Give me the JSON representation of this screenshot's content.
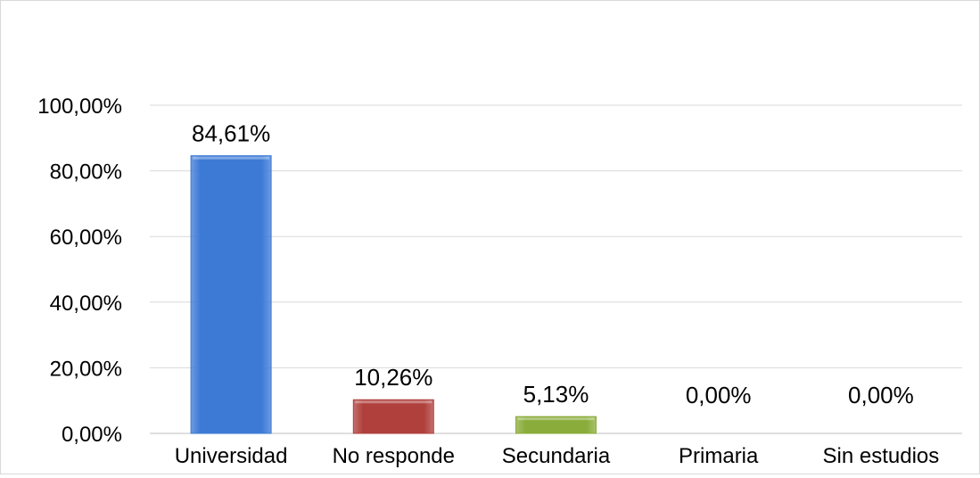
{
  "chart_data": {
    "type": "bar",
    "categories": [
      "Universidad",
      "No responde",
      "Secundaria",
      "Primaria",
      "Sin estudios"
    ],
    "values": [
      84.61,
      10.26,
      5.13,
      0.0,
      0.0
    ],
    "data_labels": [
      "84,61%",
      "10,26%",
      "5,13%",
      "0,00%",
      "0,00%"
    ],
    "bar_colors": [
      "#3c7ad6",
      "#b0403c",
      "#8aac3a",
      "#7b5aa6",
      "#3aa6c4"
    ],
    "ylim": [
      0,
      100
    ],
    "yticks": [
      0,
      20,
      40,
      60,
      80,
      100
    ],
    "ytick_labels": [
      "0,00%",
      "20,00%",
      "40,00%",
      "60,00%",
      "80,00%",
      "100,00%"
    ],
    "grid": true,
    "title": "",
    "xlabel": "",
    "ylabel": ""
  }
}
